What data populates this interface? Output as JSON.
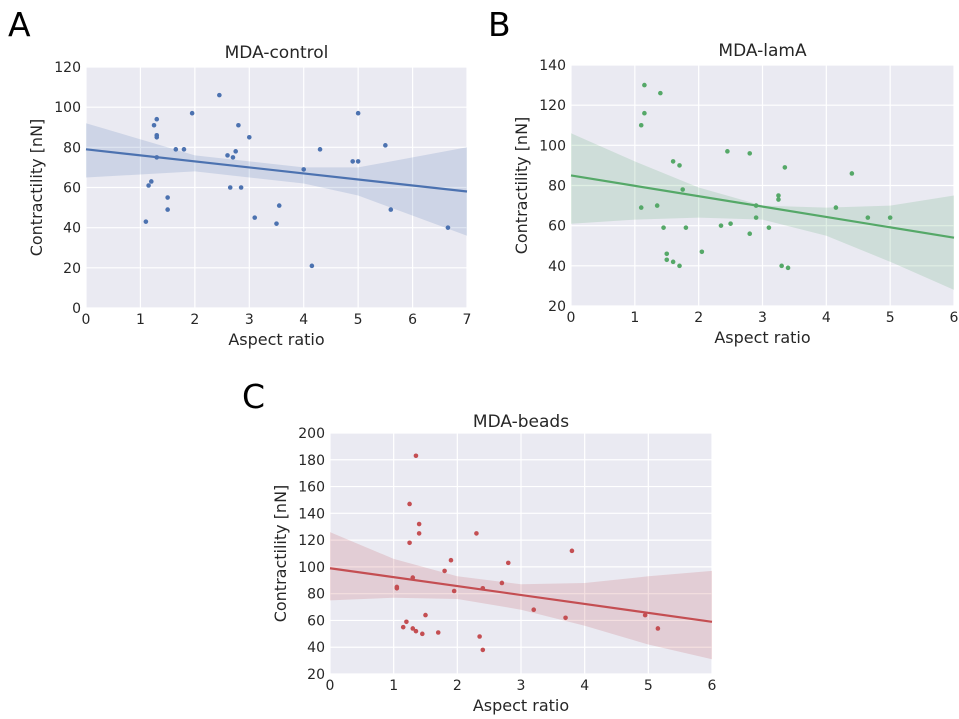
{
  "chart_data": [
    {
      "type": "scatter",
      "panel_letter": "A",
      "title": "MDA-control",
      "xlabel": "Aspect ratio",
      "ylabel": "Contractility [nN]",
      "xlim": [
        0,
        7
      ],
      "ylim": [
        0,
        120
      ],
      "xticks": [
        0,
        1,
        2,
        3,
        4,
        5,
        6,
        7
      ],
      "yticks": [
        0,
        20,
        40,
        60,
        80,
        100,
        120
      ],
      "grid": true,
      "color": "#4c72b0",
      "regression": {
        "x": [
          0,
          7
        ],
        "y": [
          79,
          58
        ]
      },
      "ci_band": {
        "x": [
          0,
          2,
          4,
          5,
          6,
          7
        ],
        "lower": [
          65,
          68,
          62,
          56,
          46,
          36
        ],
        "upper": [
          92,
          76,
          70,
          70,
          75,
          80
        ]
      },
      "points": [
        [
          1.1,
          43
        ],
        [
          1.15,
          61
        ],
        [
          1.2,
          63
        ],
        [
          1.25,
          91
        ],
        [
          1.3,
          94
        ],
        [
          1.3,
          86
        ],
        [
          1.3,
          85
        ],
        [
          1.3,
          75
        ],
        [
          1.5,
          55
        ],
        [
          1.5,
          49
        ],
        [
          1.65,
          79
        ],
        [
          1.8,
          79
        ],
        [
          1.95,
          97
        ],
        [
          2.45,
          106
        ],
        [
          2.6,
          76
        ],
        [
          2.65,
          60
        ],
        [
          2.7,
          75
        ],
        [
          2.75,
          78
        ],
        [
          2.8,
          91
        ],
        [
          2.85,
          60
        ],
        [
          3.0,
          85
        ],
        [
          3.1,
          45
        ],
        [
          3.5,
          42
        ],
        [
          3.55,
          51
        ],
        [
          4.0,
          69
        ],
        [
          4.15,
          21
        ],
        [
          4.3,
          79
        ],
        [
          4.9,
          73
        ],
        [
          5.0,
          97
        ],
        [
          5.0,
          73
        ],
        [
          5.5,
          81
        ],
        [
          5.6,
          49
        ],
        [
          6.65,
          40
        ]
      ]
    },
    {
      "type": "scatter",
      "panel_letter": "B",
      "title": "MDA-lamA",
      "xlabel": "Aspect ratio",
      "ylabel": "Contractility [nN]",
      "xlim": [
        0,
        6
      ],
      "ylim": [
        20,
        140
      ],
      "xticks": [
        0,
        1,
        2,
        3,
        4,
        5,
        6
      ],
      "yticks": [
        20,
        40,
        60,
        80,
        100,
        120,
        140
      ],
      "grid": true,
      "color": "#55a868",
      "regression": {
        "x": [
          0,
          6
        ],
        "y": [
          85,
          54
        ]
      },
      "ci_band": {
        "x": [
          0,
          1,
          2,
          3,
          4,
          5,
          6
        ],
        "lower": [
          61,
          63,
          64,
          63,
          55,
          42,
          28
        ],
        "upper": [
          106,
          92,
          79,
          70,
          69,
          70,
          75
        ]
      },
      "points": [
        [
          1.1,
          110
        ],
        [
          1.1,
          69
        ],
        [
          1.15,
          130
        ],
        [
          1.15,
          116
        ],
        [
          1.35,
          70
        ],
        [
          1.4,
          126
        ],
        [
          1.45,
          59
        ],
        [
          1.5,
          43
        ],
        [
          1.5,
          46
        ],
        [
          1.6,
          42
        ],
        [
          1.6,
          92
        ],
        [
          1.7,
          90
        ],
        [
          1.7,
          40
        ],
        [
          1.75,
          78
        ],
        [
          1.8,
          59
        ],
        [
          2.05,
          47
        ],
        [
          2.35,
          60
        ],
        [
          2.45,
          97
        ],
        [
          2.5,
          61
        ],
        [
          2.8,
          56
        ],
        [
          2.8,
          96
        ],
        [
          2.9,
          70
        ],
        [
          2.9,
          64
        ],
        [
          3.1,
          59
        ],
        [
          3.25,
          73
        ],
        [
          3.25,
          75
        ],
        [
          3.3,
          40
        ],
        [
          3.35,
          89
        ],
        [
          3.4,
          39
        ],
        [
          4.15,
          69
        ],
        [
          4.4,
          86
        ],
        [
          4.65,
          64
        ],
        [
          5.0,
          64
        ]
      ]
    },
    {
      "type": "scatter",
      "panel_letter": "C",
      "title": "MDA-beads",
      "xlabel": "Aspect ratio",
      "ylabel": "Contractility [nN]",
      "xlim": [
        0,
        6
      ],
      "ylim": [
        20,
        200
      ],
      "xticks": [
        0,
        1,
        2,
        3,
        4,
        5,
        6
      ],
      "yticks": [
        20,
        40,
        60,
        80,
        100,
        120,
        140,
        160,
        180,
        200
      ],
      "grid": true,
      "color": "#c44e52",
      "regression": {
        "x": [
          0,
          6
        ],
        "y": [
          99,
          59
        ]
      },
      "ci_band": {
        "x": [
          0,
          1,
          2,
          3,
          4,
          5,
          6
        ],
        "lower": [
          75,
          77,
          76,
          68,
          56,
          42,
          31
        ],
        "upper": [
          126,
          106,
          93,
          87,
          88,
          93,
          97
        ]
      },
      "points": [
        [
          1.05,
          84
        ],
        [
          1.05,
          85
        ],
        [
          1.15,
          55
        ],
        [
          1.2,
          59
        ],
        [
          1.25,
          118
        ],
        [
          1.25,
          147
        ],
        [
          1.3,
          54
        ],
        [
          1.3,
          92
        ],
        [
          1.35,
          183
        ],
        [
          1.35,
          52
        ],
        [
          1.4,
          132
        ],
        [
          1.4,
          125
        ],
        [
          1.45,
          50
        ],
        [
          1.5,
          64
        ],
        [
          1.7,
          51
        ],
        [
          1.8,
          97
        ],
        [
          1.9,
          105
        ],
        [
          1.95,
          82
        ],
        [
          2.3,
          125
        ],
        [
          2.35,
          48
        ],
        [
          2.4,
          38
        ],
        [
          2.4,
          84
        ],
        [
          2.7,
          88
        ],
        [
          2.8,
          103
        ],
        [
          3.2,
          68
        ],
        [
          3.7,
          62
        ],
        [
          3.8,
          112
        ],
        [
          4.95,
          64
        ],
        [
          5.15,
          54
        ]
      ]
    }
  ]
}
